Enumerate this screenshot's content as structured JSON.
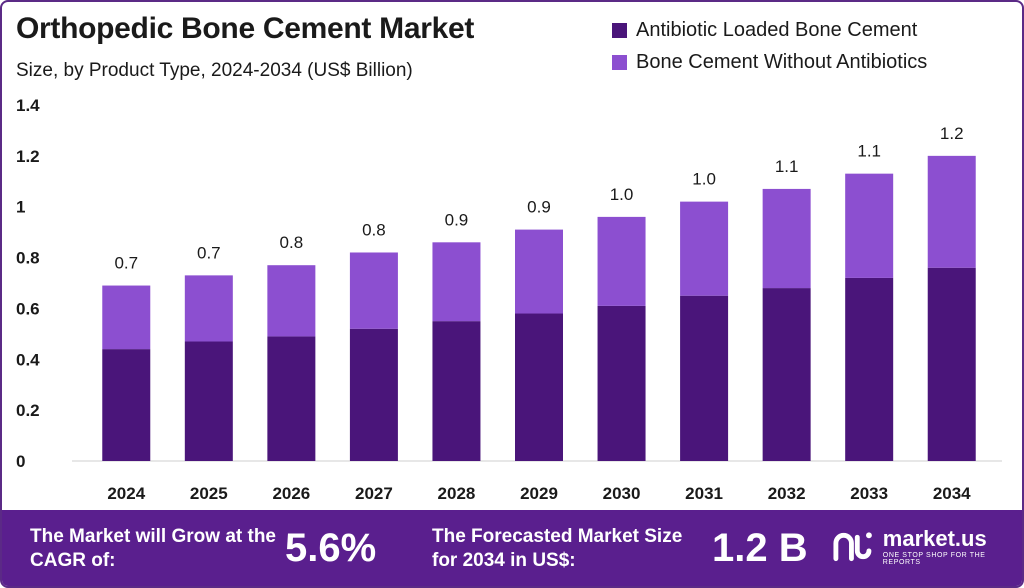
{
  "title": "Orthopedic Bone Cement Market",
  "subtitle": "Size, by Product Type, 2024-2034 (US$ Billion)",
  "colors": {
    "series1": "#4a157a",
    "series2": "#8c4fd0",
    "footer": "#5a1f8e"
  },
  "chart_data": {
    "type": "bar",
    "stacked": true,
    "categories": [
      "2024",
      "2025",
      "2026",
      "2027",
      "2028",
      "2029",
      "2030",
      "2031",
      "2032",
      "2033",
      "2034"
    ],
    "series": [
      {
        "name": "Antibiotic Loaded Bone Cement",
        "values": [
          0.44,
          0.47,
          0.49,
          0.52,
          0.55,
          0.58,
          0.61,
          0.65,
          0.68,
          0.72,
          0.76
        ]
      },
      {
        "name": "Bone Cement Without Antibiotics",
        "values": [
          0.25,
          0.26,
          0.28,
          0.3,
          0.31,
          0.33,
          0.35,
          0.37,
          0.39,
          0.41,
          0.44
        ]
      }
    ],
    "totals_labels": [
      "0.7",
      "0.7",
      "0.8",
      "0.8",
      "0.9",
      "0.9",
      "1.0",
      "1.0",
      "1.1",
      "1.1",
      "1.2"
    ],
    "yticks": [
      "0",
      "0.2",
      "0.4",
      "0.6",
      "0.8",
      "1",
      "1.2",
      "1.4"
    ],
    "ylim": [
      0,
      1.4
    ],
    "grid": false,
    "legend_position": "top-right"
  },
  "footer": {
    "cagr_label": "The Market will Grow at the CAGR of:",
    "cagr_value": "5.6%",
    "forecast_label": "The Forecasted Market Size for 2034 in US$:",
    "forecast_value": "1.2 B",
    "logo_name": "market.us",
    "logo_tagline": "ONE STOP SHOP FOR THE REPORTS",
    "logo_icon": "market-us-logo-icon"
  }
}
